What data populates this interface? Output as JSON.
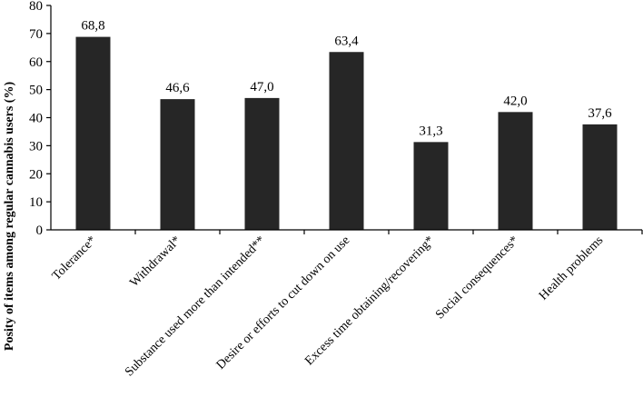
{
  "chart_data": {
    "type": "bar",
    "title": "",
    "xlabel": "",
    "ylabel": "Posity of items among regular cannabis users (%)",
    "ylim": [
      0,
      80
    ],
    "yticks": [
      0,
      10,
      20,
      30,
      40,
      50,
      60,
      70,
      80
    ],
    "grid": false,
    "legend": "none",
    "bar_color": "#262626",
    "categories": [
      "Tolerance*",
      "Withdrawal*",
      "Substance used more than intended**",
      "Desire or efforts to cut down on use",
      "Excess time obtaining/recovering*",
      "Social consequences*",
      "Health problems"
    ],
    "values": [
      68.8,
      46.6,
      47.0,
      63.4,
      31.3,
      42.0,
      37.6
    ],
    "data_labels": [
      "68,8",
      "46,6",
      "47,0",
      "63,4",
      "31,3",
      "42,0",
      "37,6"
    ]
  }
}
